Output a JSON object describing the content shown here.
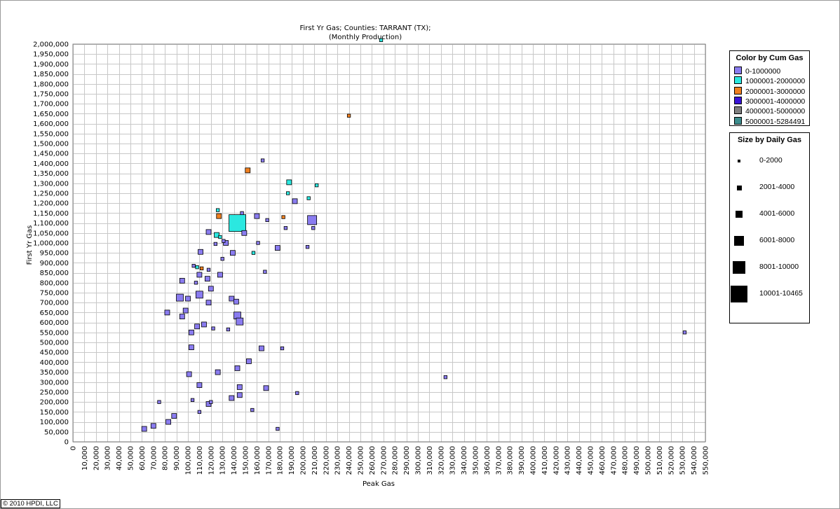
{
  "chart_data": {
    "type": "scatter",
    "title": "First Yr Gas; Counties: TARRANT (TX);",
    "subtitle": "(Monthly Production)",
    "xlabel": "Peak Gas",
    "ylabel": "First Yr Gas",
    "xlim": [
      0,
      550000
    ],
    "ylim": [
      0,
      2000000
    ],
    "x_step": 10000,
    "y_step": 50000,
    "grid": true,
    "legend_placement": "right",
    "color_legend": {
      "title": "Color by Cum Gas",
      "entries": [
        {
          "label": "0-1000000",
          "color": "#8a7cf0"
        },
        {
          "label": "1000001-2000000",
          "color": "#2be8e0"
        },
        {
          "label": "2000001-3000000",
          "color": "#f08020"
        },
        {
          "label": "3000001-4000000",
          "color": "#3a14d8"
        },
        {
          "label": "4000001-5000000",
          "color": "#808080"
        },
        {
          "label": "5000001-5284491",
          "color": "#3c8c8c"
        }
      ]
    },
    "size_legend": {
      "title": "Size by Daily Gas",
      "entries": [
        {
          "label": "0-2000",
          "size_class": 1
        },
        {
          "label": "2001-4000",
          "size_class": 2
        },
        {
          "label": "4001-6000",
          "size_class": 3
        },
        {
          "label": "6001-8000",
          "size_class": 4
        },
        {
          "label": "8001-10000",
          "size_class": 5
        },
        {
          "label": "10001-10465",
          "size_class": 6
        }
      ]
    },
    "points": [
      {
        "x": 268000,
        "y": 2020000,
        "c": 2,
        "s": 1
      },
      {
        "x": 240000,
        "y": 1640000,
        "c": 3,
        "s": 1
      },
      {
        "x": 165000,
        "y": 1415000,
        "c": 1,
        "s": 1
      },
      {
        "x": 152000,
        "y": 1365000,
        "c": 3,
        "s": 2
      },
      {
        "x": 188000,
        "y": 1305000,
        "c": 2,
        "s": 2
      },
      {
        "x": 212000,
        "y": 1290000,
        "c": 2,
        "s": 1
      },
      {
        "x": 187000,
        "y": 1250000,
        "c": 2,
        "s": 1
      },
      {
        "x": 205000,
        "y": 1225000,
        "c": 2,
        "s": 1
      },
      {
        "x": 193000,
        "y": 1210000,
        "c": 1,
        "s": 2
      },
      {
        "x": 126000,
        "y": 1165000,
        "c": 2,
        "s": 1
      },
      {
        "x": 147000,
        "y": 1150000,
        "c": 1,
        "s": 1
      },
      {
        "x": 127000,
        "y": 1135000,
        "c": 3,
        "s": 2
      },
      {
        "x": 160000,
        "y": 1135000,
        "c": 1,
        "s": 2
      },
      {
        "x": 183000,
        "y": 1130000,
        "c": 3,
        "s": 1
      },
      {
        "x": 169000,
        "y": 1115000,
        "c": 1,
        "s": 1
      },
      {
        "x": 208000,
        "y": 1115000,
        "c": 1,
        "s": 4
      },
      {
        "x": 143000,
        "y": 1100000,
        "c": 2,
        "s": 6
      },
      {
        "x": 185000,
        "y": 1075000,
        "c": 1,
        "s": 1
      },
      {
        "x": 209000,
        "y": 1075000,
        "c": 1,
        "s": 1
      },
      {
        "x": 118000,
        "y": 1055000,
        "c": 1,
        "s": 2
      },
      {
        "x": 149000,
        "y": 1050000,
        "c": 1,
        "s": 2
      },
      {
        "x": 125000,
        "y": 1040000,
        "c": 2,
        "s": 2
      },
      {
        "x": 128000,
        "y": 1030000,
        "c": 2,
        "s": 1
      },
      {
        "x": 131000,
        "y": 1010000,
        "c": 1,
        "s": 1
      },
      {
        "x": 133000,
        "y": 1000000,
        "c": 1,
        "s": 2
      },
      {
        "x": 161000,
        "y": 1000000,
        "c": 1,
        "s": 1
      },
      {
        "x": 124000,
        "y": 995000,
        "c": 1,
        "s": 1
      },
      {
        "x": 178000,
        "y": 975000,
        "c": 1,
        "s": 2
      },
      {
        "x": 204000,
        "y": 980000,
        "c": 1,
        "s": 1
      },
      {
        "x": 111000,
        "y": 955000,
        "c": 1,
        "s": 2
      },
      {
        "x": 139000,
        "y": 950000,
        "c": 1,
        "s": 2
      },
      {
        "x": 157000,
        "y": 950000,
        "c": 2,
        "s": 1
      },
      {
        "x": 130000,
        "y": 920000,
        "c": 1,
        "s": 1
      },
      {
        "x": 105000,
        "y": 885000,
        "c": 1,
        "s": 1
      },
      {
        "x": 108000,
        "y": 878000,
        "c": 2,
        "s": 1
      },
      {
        "x": 112000,
        "y": 872000,
        "c": 3,
        "s": 1
      },
      {
        "x": 118000,
        "y": 865000,
        "c": 1,
        "s": 1
      },
      {
        "x": 167000,
        "y": 855000,
        "c": 1,
        "s": 1
      },
      {
        "x": 110000,
        "y": 840000,
        "c": 1,
        "s": 2
      },
      {
        "x": 128000,
        "y": 840000,
        "c": 1,
        "s": 2
      },
      {
        "x": 117000,
        "y": 820000,
        "c": 1,
        "s": 2
      },
      {
        "x": 95000,
        "y": 810000,
        "c": 1,
        "s": 2
      },
      {
        "x": 107000,
        "y": 800000,
        "c": 1,
        "s": 1
      },
      {
        "x": 120000,
        "y": 770000,
        "c": 1,
        "s": 2
      },
      {
        "x": 110000,
        "y": 740000,
        "c": 1,
        "s": 3
      },
      {
        "x": 93000,
        "y": 725000,
        "c": 1,
        "s": 3
      },
      {
        "x": 100000,
        "y": 720000,
        "c": 1,
        "s": 2
      },
      {
        "x": 138000,
        "y": 720000,
        "c": 1,
        "s": 2
      },
      {
        "x": 142000,
        "y": 705000,
        "c": 1,
        "s": 2
      },
      {
        "x": 118000,
        "y": 700000,
        "c": 1,
        "s": 2
      },
      {
        "x": 98000,
        "y": 660000,
        "c": 1,
        "s": 2
      },
      {
        "x": 82000,
        "y": 650000,
        "c": 1,
        "s": 2
      },
      {
        "x": 143000,
        "y": 635000,
        "c": 1,
        "s": 3
      },
      {
        "x": 95000,
        "y": 630000,
        "c": 1,
        "s": 2
      },
      {
        "x": 145000,
        "y": 605000,
        "c": 1,
        "s": 3
      },
      {
        "x": 114000,
        "y": 590000,
        "c": 1,
        "s": 2
      },
      {
        "x": 108000,
        "y": 580000,
        "c": 1,
        "s": 2
      },
      {
        "x": 122000,
        "y": 570000,
        "c": 1,
        "s": 1
      },
      {
        "x": 135000,
        "y": 565000,
        "c": 1,
        "s": 1
      },
      {
        "x": 103000,
        "y": 550000,
        "c": 1,
        "s": 2
      },
      {
        "x": 532000,
        "y": 550000,
        "c": 1,
        "s": 1
      },
      {
        "x": 103000,
        "y": 475000,
        "c": 1,
        "s": 2
      },
      {
        "x": 164000,
        "y": 470000,
        "c": 1,
        "s": 2
      },
      {
        "x": 182000,
        "y": 470000,
        "c": 1,
        "s": 1
      },
      {
        "x": 153000,
        "y": 405000,
        "c": 1,
        "s": 2
      },
      {
        "x": 143000,
        "y": 370000,
        "c": 1,
        "s": 2
      },
      {
        "x": 126000,
        "y": 350000,
        "c": 1,
        "s": 2
      },
      {
        "x": 101000,
        "y": 340000,
        "c": 1,
        "s": 2
      },
      {
        "x": 324000,
        "y": 325000,
        "c": 1,
        "s": 1
      },
      {
        "x": 110000,
        "y": 285000,
        "c": 1,
        "s": 2
      },
      {
        "x": 145000,
        "y": 275000,
        "c": 1,
        "s": 2
      },
      {
        "x": 168000,
        "y": 270000,
        "c": 1,
        "s": 2
      },
      {
        "x": 195000,
        "y": 245000,
        "c": 1,
        "s": 1
      },
      {
        "x": 145000,
        "y": 235000,
        "c": 1,
        "s": 2
      },
      {
        "x": 138000,
        "y": 220000,
        "c": 1,
        "s": 2
      },
      {
        "x": 104000,
        "y": 210000,
        "c": 1,
        "s": 1
      },
      {
        "x": 120000,
        "y": 200000,
        "c": 1,
        "s": 1
      },
      {
        "x": 118000,
        "y": 190000,
        "c": 1,
        "s": 2
      },
      {
        "x": 156000,
        "y": 160000,
        "c": 1,
        "s": 1
      },
      {
        "x": 178000,
        "y": 65000,
        "c": 1,
        "s": 1
      },
      {
        "x": 83000,
        "y": 100000,
        "c": 1,
        "s": 2
      },
      {
        "x": 70000,
        "y": 80000,
        "c": 1,
        "s": 2
      },
      {
        "x": 62000,
        "y": 65000,
        "c": 1,
        "s": 2
      },
      {
        "x": 88000,
        "y": 130000,
        "c": 1,
        "s": 2
      },
      {
        "x": 110000,
        "y": 150000,
        "c": 1,
        "s": 1
      },
      {
        "x": 75000,
        "y": 200000,
        "c": 1,
        "s": 1
      }
    ]
  }
}
